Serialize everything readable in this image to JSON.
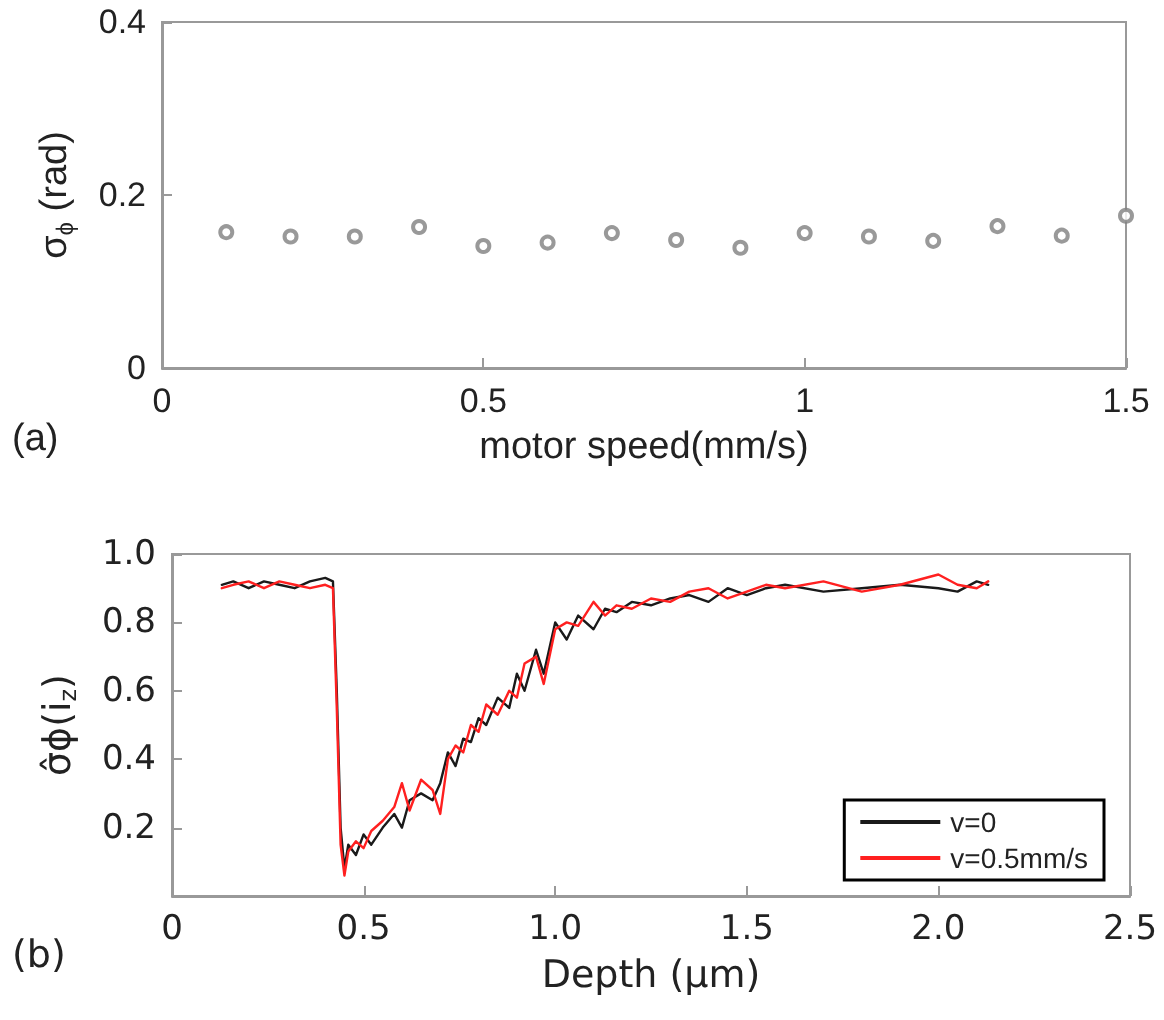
{
  "chart_data": [
    {
      "type": "scatter",
      "xlabel": "motor speed(mm/s)",
      "ylabel": "σ$_{ϕ}$ (rad)",
      "annotations": [
        "(a)"
      ],
      "x": [
        0.1,
        0.2,
        0.3,
        0.4,
        0.5,
        0.6,
        0.7,
        0.8,
        0.9,
        1.0,
        1.1,
        1.2,
        1.3,
        1.4,
        1.5
      ],
      "series": [
        {
          "color": "#808080",
          "values": [
            0.157,
            0.152,
            0.152,
            0.163,
            0.141,
            0.145,
            0.156,
            0.148,
            0.139,
            0.156,
            0.152,
            0.147,
            0.164,
            0.153,
            0.176
          ]
        }
      ],
      "marker": "circle",
      "xlim": [
        0,
        1.5
      ],
      "xticks": [
        0,
        0.5,
        1,
        1.5
      ],
      "ylim": [
        0,
        0.4
      ],
      "yticks": [
        0,
        0.2,
        0.4
      ],
      "grid": false,
      "legend": false
    },
    {
      "type": "line",
      "xlabel": "Depth (μm)",
      "ylabel": "σ̂ϕ(i$_{z}$)",
      "annotations": [
        "(b)"
      ],
      "x": [
        0.13,
        0.16,
        0.2,
        0.24,
        0.28,
        0.32,
        0.36,
        0.4,
        0.42,
        0.43,
        0.44,
        0.45,
        0.46,
        0.48,
        0.5,
        0.52,
        0.55,
        0.58,
        0.6,
        0.62,
        0.65,
        0.68,
        0.7,
        0.72,
        0.74,
        0.76,
        0.78,
        0.8,
        0.82,
        0.85,
        0.88,
        0.9,
        0.92,
        0.95,
        0.97,
        1.0,
        1.03,
        1.06,
        1.1,
        1.13,
        1.16,
        1.2,
        1.25,
        1.3,
        1.35,
        1.4,
        1.45,
        1.5,
        1.55,
        1.6,
        1.7,
        1.8,
        1.9,
        2.0,
        2.05,
        2.1,
        2.13
      ],
      "series": [
        {
          "name": "v=0",
          "color": "#1a1a1a",
          "values": [
            0.91,
            0.92,
            0.9,
            0.92,
            0.91,
            0.9,
            0.92,
            0.93,
            0.92,
            0.6,
            0.2,
            0.08,
            0.15,
            0.12,
            0.18,
            0.15,
            0.2,
            0.24,
            0.2,
            0.28,
            0.3,
            0.28,
            0.33,
            0.42,
            0.38,
            0.46,
            0.45,
            0.52,
            0.5,
            0.58,
            0.55,
            0.65,
            0.6,
            0.72,
            0.65,
            0.8,
            0.75,
            0.82,
            0.78,
            0.84,
            0.83,
            0.86,
            0.85,
            0.87,
            0.88,
            0.86,
            0.9,
            0.88,
            0.9,
            0.91,
            0.89,
            0.9,
            0.91,
            0.9,
            0.89,
            0.92,
            0.91
          ]
        },
        {
          "name": "v=0.5mm/s",
          "color": "#ff2020",
          "values": [
            0.9,
            0.91,
            0.92,
            0.9,
            0.92,
            0.91,
            0.9,
            0.91,
            0.9,
            0.55,
            0.15,
            0.06,
            0.13,
            0.16,
            0.14,
            0.19,
            0.22,
            0.26,
            0.33,
            0.25,
            0.34,
            0.31,
            0.24,
            0.4,
            0.44,
            0.42,
            0.5,
            0.48,
            0.56,
            0.53,
            0.6,
            0.58,
            0.68,
            0.7,
            0.62,
            0.78,
            0.8,
            0.79,
            0.86,
            0.82,
            0.85,
            0.84,
            0.87,
            0.86,
            0.89,
            0.9,
            0.87,
            0.89,
            0.91,
            0.9,
            0.92,
            0.89,
            0.91,
            0.94,
            0.91,
            0.9,
            0.92
          ]
        }
      ],
      "marker": "none",
      "line_style": "solid",
      "xlim": [
        0,
        2.5
      ],
      "xticks": [
        0,
        {
          "value": 0.5,
          "label": "0.5"
        },
        {
          "value": 1,
          "label": "1.0"
        },
        {
          "value": 1.5,
          "label": "1.5"
        },
        {
          "value": 2,
          "label": "2.0"
        },
        {
          "value": 2.5,
          "label": "2.5"
        }
      ],
      "ylim": [
        0,
        1
      ],
      "yticks": [
        {
          "value": 0.2,
          "label": "0.2"
        },
        {
          "value": 0.4,
          "label": "0.4"
        },
        {
          "value": 0.6,
          "label": "0.6"
        },
        {
          "value": 0.8,
          "label": "0.8"
        },
        {
          "value": 1,
          "label": "1.0"
        }
      ],
      "grid": false,
      "legend": "bottom right"
    }
  ]
}
